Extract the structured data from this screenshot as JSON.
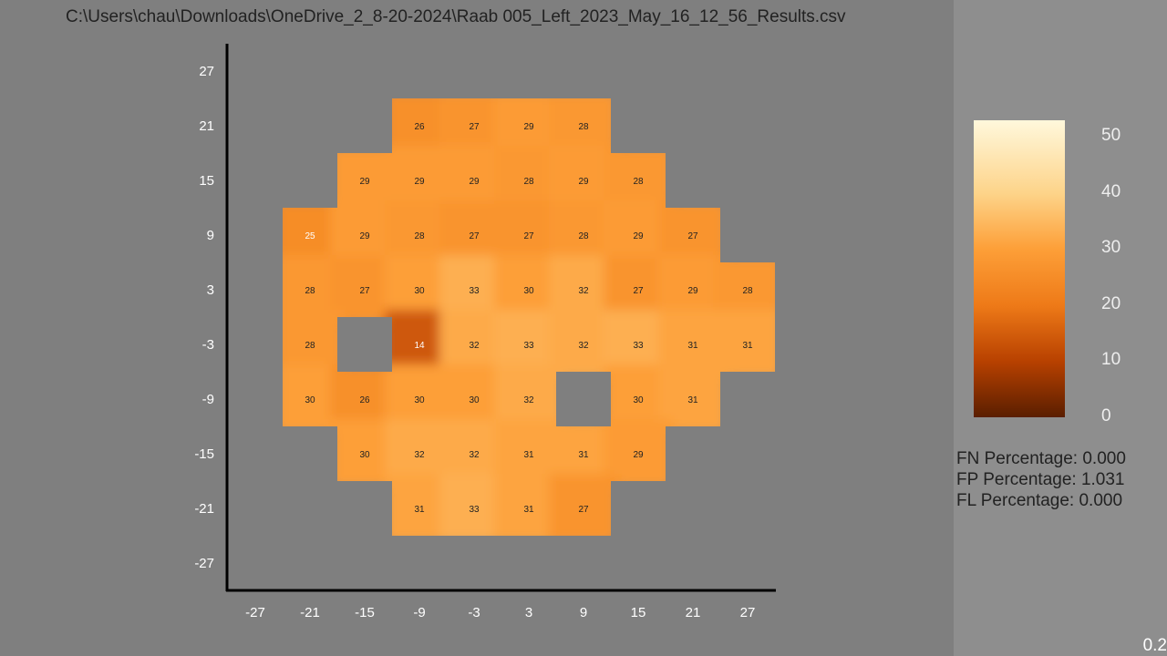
{
  "window": {
    "file_path": "C:\\Users\\chau\\Downloads\\OneDrive_2_8-20-2024\\Raab 005_Left_2023_May_16_12_56_Results.csv",
    "version": "0.2"
  },
  "colors": {
    "background": "#7f7f7f",
    "side_panel": "#8e8e8e",
    "axis": "#000000",
    "missing_cell": "#7f7f7f"
  },
  "chart_data": {
    "type": "heatmap",
    "x_ticks": [
      -27,
      -21,
      -15,
      -9,
      -3,
      3,
      9,
      15,
      21,
      27
    ],
    "y_ticks": [
      27,
      21,
      15,
      9,
      3,
      -3,
      -9,
      -15,
      -21,
      -27
    ],
    "xlim": [
      -30,
      30
    ],
    "ylim": [
      -30,
      30
    ],
    "cell_size": 6,
    "points": [
      {
        "x": -9,
        "y": 21,
        "v": 26
      },
      {
        "x": -3,
        "y": 21,
        "v": 27
      },
      {
        "x": 3,
        "y": 21,
        "v": 29
      },
      {
        "x": 9,
        "y": 21,
        "v": 28
      },
      {
        "x": -15,
        "y": 15,
        "v": 29
      },
      {
        "x": -9,
        "y": 15,
        "v": 29
      },
      {
        "x": -3,
        "y": 15,
        "v": 29
      },
      {
        "x": 3,
        "y": 15,
        "v": 28
      },
      {
        "x": 9,
        "y": 15,
        "v": 29
      },
      {
        "x": 15,
        "y": 15,
        "v": 28
      },
      {
        "x": -21,
        "y": 9,
        "v": 25
      },
      {
        "x": -15,
        "y": 9,
        "v": 29
      },
      {
        "x": -9,
        "y": 9,
        "v": 28
      },
      {
        "x": -3,
        "y": 9,
        "v": 27
      },
      {
        "x": 3,
        "y": 9,
        "v": 27
      },
      {
        "x": 9,
        "y": 9,
        "v": 28
      },
      {
        "x": 15,
        "y": 9,
        "v": 29
      },
      {
        "x": 21,
        "y": 9,
        "v": 27
      },
      {
        "x": -21,
        "y": 3,
        "v": 28
      },
      {
        "x": -15,
        "y": 3,
        "v": 27
      },
      {
        "x": -9,
        "y": 3,
        "v": 30
      },
      {
        "x": -3,
        "y": 3,
        "v": 33
      },
      {
        "x": 3,
        "y": 3,
        "v": 30
      },
      {
        "x": 9,
        "y": 3,
        "v": 32
      },
      {
        "x": 15,
        "y": 3,
        "v": 27
      },
      {
        "x": 21,
        "y": 3,
        "v": 29
      },
      {
        "x": 27,
        "y": 3,
        "v": 28
      },
      {
        "x": -21,
        "y": -3,
        "v": 28
      },
      {
        "x": -9,
        "y": -3,
        "v": 14
      },
      {
        "x": -3,
        "y": -3,
        "v": 32
      },
      {
        "x": 3,
        "y": -3,
        "v": 33
      },
      {
        "x": 9,
        "y": -3,
        "v": 32
      },
      {
        "x": 15,
        "y": -3,
        "v": 33
      },
      {
        "x": 21,
        "y": -3,
        "v": 31
      },
      {
        "x": 27,
        "y": -3,
        "v": 31
      },
      {
        "x": -21,
        "y": -9,
        "v": 30
      },
      {
        "x": -15,
        "y": -9,
        "v": 26
      },
      {
        "x": -9,
        "y": -9,
        "v": 30
      },
      {
        "x": -3,
        "y": -9,
        "v": 30
      },
      {
        "x": 3,
        "y": -9,
        "v": 32
      },
      {
        "x": 15,
        "y": -9,
        "v": 30
      },
      {
        "x": 21,
        "y": -9,
        "v": 31
      },
      {
        "x": -15,
        "y": -15,
        "v": 30
      },
      {
        "x": -9,
        "y": -15,
        "v": 32
      },
      {
        "x": -3,
        "y": -15,
        "v": 32
      },
      {
        "x": 3,
        "y": -15,
        "v": 31
      },
      {
        "x": 9,
        "y": -15,
        "v": 31
      },
      {
        "x": 15,
        "y": -15,
        "v": 29
      },
      {
        "x": -9,
        "y": -21,
        "v": 31
      },
      {
        "x": -3,
        "y": -21,
        "v": 33
      },
      {
        "x": 3,
        "y": -21,
        "v": 31
      },
      {
        "x": 9,
        "y": -21,
        "v": 27
      }
    ],
    "blind_spots": [
      {
        "x": -15,
        "y": -3
      },
      {
        "x": 9,
        "y": -9
      }
    ],
    "colorbar": {
      "min": 0,
      "max": 53,
      "ticks": [
        50,
        40,
        30,
        20,
        10,
        0
      ],
      "stops": [
        {
          "v": 0,
          "color": "#5a1e00"
        },
        {
          "v": 10,
          "color": "#b84100"
        },
        {
          "v": 20,
          "color": "#ee7a18"
        },
        {
          "v": 30,
          "color": "#fd9f38"
        },
        {
          "v": 40,
          "color": "#fdd48a"
        },
        {
          "v": 53,
          "color": "#fff8dc"
        }
      ]
    }
  },
  "stats": {
    "fn": "FN Percentage: 0.000",
    "fp": "FP Percentage: 1.031",
    "fl": "FL Percentage: 0.000"
  }
}
